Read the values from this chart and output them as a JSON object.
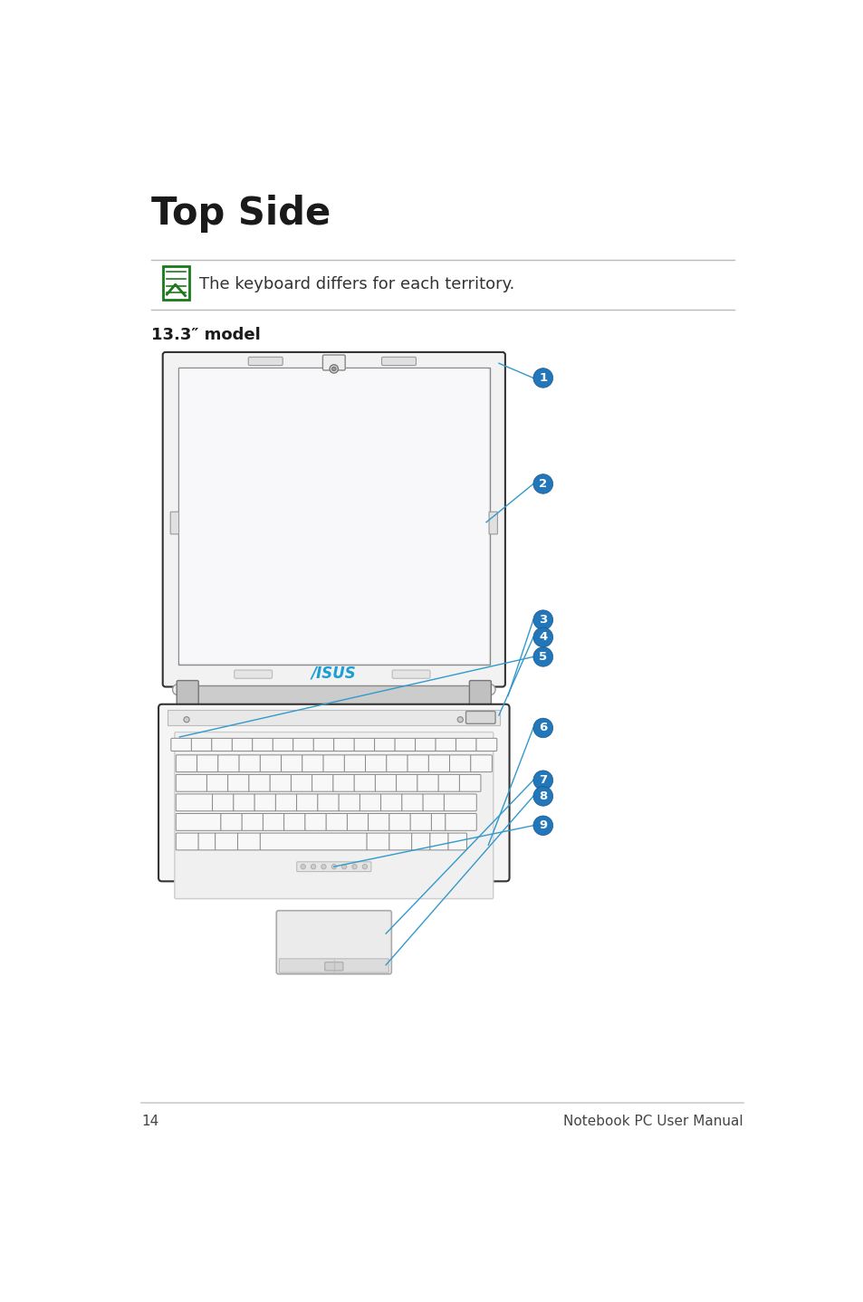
{
  "title": "Top Side",
  "note_text": "The keyboard differs for each territory.",
  "model_label": "13.3″ model",
  "page_number": "14",
  "footer_text": "Notebook PC User Manual",
  "bg_color": "#ffffff",
  "title_color": "#1a1a1a",
  "note_color": "#333333",
  "model_color": "#1a1a1a",
  "accent_color": "#3399cc",
  "blue_circle_color": "#2277bb",
  "laptop_outline": "#333333",
  "laptop_fill": "#f8f8f8",
  "screen_fill": "#f0f0f0",
  "screen_inner": "#f5f5f5",
  "key_fill": "#f8f8f8",
  "key_stroke": "#666666",
  "hinge_fill": "#cccccc",
  "asus_color": "#1a9ed4"
}
